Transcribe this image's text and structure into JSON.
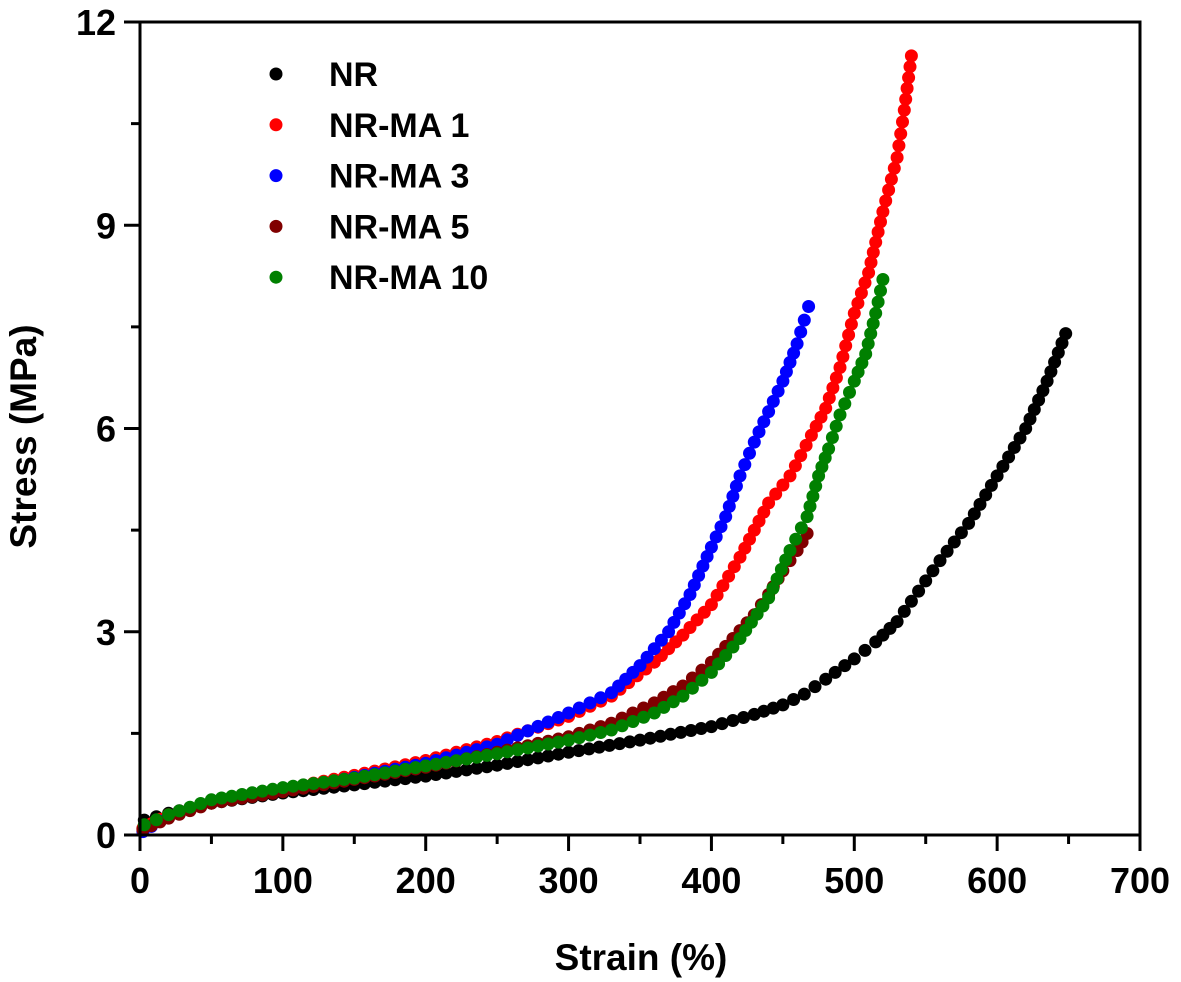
{
  "chart_data": {
    "type": "scatter",
    "title": "",
    "xlabel": "Strain (%)",
    "ylabel": "Stress (MPa)",
    "xlim": [
      0,
      700
    ],
    "ylim": [
      0,
      12
    ],
    "xticks": [
      0,
      100,
      200,
      300,
      400,
      500,
      600,
      700
    ],
    "xtick_labels": [
      "0",
      "100",
      "200",
      "300",
      "400",
      "500",
      "600",
      "700"
    ],
    "xminor_ticks": [
      50,
      150,
      250,
      350,
      450,
      550,
      650
    ],
    "yticks": [
      0,
      3,
      6,
      9,
      12
    ],
    "ytick_labels": [
      "0",
      "3",
      "6",
      "9",
      "12"
    ],
    "yminor_ticks": [
      1.5,
      4.5,
      7.5,
      10.5
    ],
    "grid": false,
    "legend_position": "top-left",
    "series": [
      {
        "name": "NR",
        "color": "#000000",
        "x": [
          3,
          20,
          50,
          100,
          150,
          200,
          250,
          300,
          350,
          400,
          430,
          450,
          465,
          480,
          500,
          515,
          530,
          545,
          560,
          580,
          600,
          620,
          635,
          648
        ],
        "y": [
          0.22,
          0.32,
          0.47,
          0.62,
          0.74,
          0.87,
          1.03,
          1.22,
          1.4,
          1.6,
          1.78,
          1.92,
          2.08,
          2.3,
          2.6,
          2.85,
          3.15,
          3.6,
          4.05,
          4.6,
          5.3,
          6.0,
          6.7,
          7.4
        ]
      },
      {
        "name": "NR-MA 1",
        "color": "#ff0000",
        "x": [
          2,
          20,
          50,
          100,
          150,
          200,
          250,
          300,
          330,
          360,
          380,
          400,
          420,
          440,
          455,
          470,
          480,
          490,
          500,
          510,
          520,
          530,
          535,
          540
        ],
        "y": [
          0.1,
          0.3,
          0.5,
          0.68,
          0.88,
          1.1,
          1.38,
          1.75,
          2.05,
          2.55,
          2.95,
          3.4,
          4.1,
          4.9,
          5.3,
          5.9,
          6.3,
          6.9,
          7.7,
          8.3,
          9.2,
          10.0,
          10.7,
          11.5
        ]
      },
      {
        "name": "NR-MA 3",
        "color": "#0000ff",
        "x": [
          2,
          20,
          50,
          100,
          150,
          200,
          250,
          300,
          330,
          350,
          370,
          385,
          400,
          410,
          420,
          430,
          440,
          450,
          460,
          465,
          468
        ],
        "y": [
          0.05,
          0.28,
          0.5,
          0.66,
          0.85,
          1.06,
          1.34,
          1.8,
          2.1,
          2.5,
          3.0,
          3.55,
          4.25,
          4.7,
          5.3,
          5.8,
          6.25,
          6.7,
          7.25,
          7.6,
          7.8
        ]
      },
      {
        "name": "NR-MA 5",
        "color": "#800000",
        "x": [
          2,
          20,
          50,
          100,
          150,
          200,
          250,
          300,
          330,
          360,
          380,
          400,
          415,
          430,
          440,
          450,
          460,
          467
        ],
        "y": [
          0.08,
          0.25,
          0.47,
          0.64,
          0.82,
          1.0,
          1.22,
          1.45,
          1.65,
          1.95,
          2.2,
          2.55,
          2.9,
          3.25,
          3.55,
          3.9,
          4.2,
          4.45
        ]
      },
      {
        "name": "NR-MA 10",
        "color": "#008000",
        "x": [
          3,
          20,
          50,
          100,
          150,
          200,
          250,
          300,
          330,
          360,
          380,
          400,
          420,
          440,
          455,
          467,
          475,
          482,
          490,
          500,
          508,
          515,
          520
        ],
        "y": [
          0.15,
          0.3,
          0.52,
          0.7,
          0.84,
          1.02,
          1.2,
          1.4,
          1.55,
          1.8,
          2.05,
          2.4,
          2.9,
          3.5,
          4.2,
          4.7,
          5.3,
          5.7,
          6.2,
          6.7,
          7.1,
          7.7,
          8.2
        ]
      }
    ]
  }
}
